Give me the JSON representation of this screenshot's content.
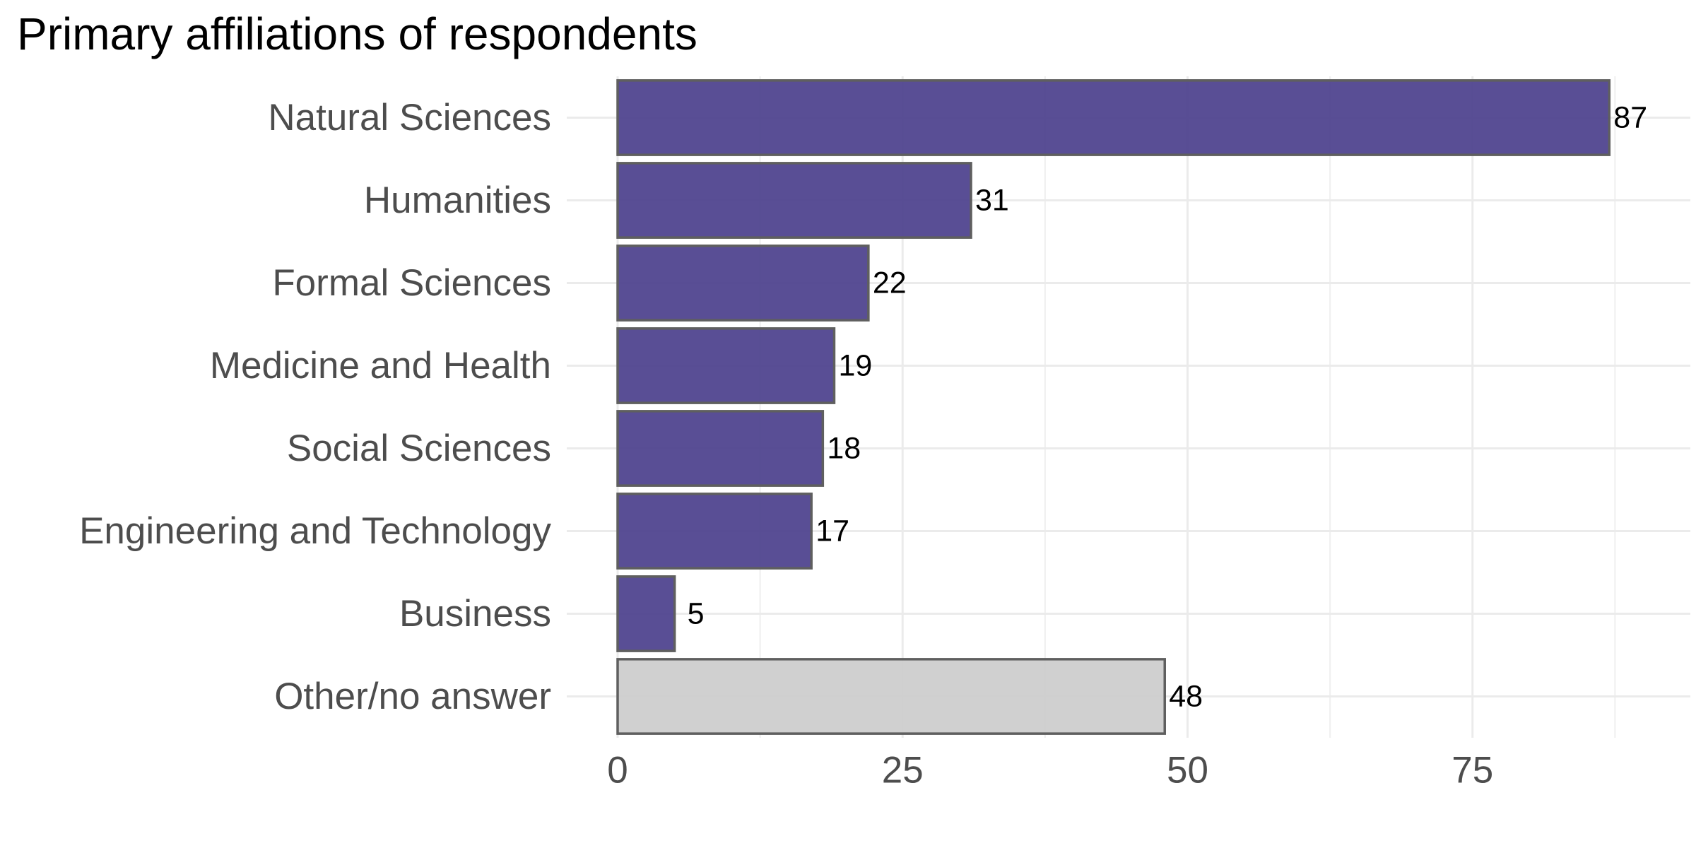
{
  "chart_data": {
    "type": "bar",
    "orientation": "horizontal",
    "title": "Primary affiliations of respondents",
    "xlabel": "",
    "ylabel": "",
    "categories": [
      "Natural Sciences",
      "Humanities",
      "Formal Sciences",
      "Medicine and Health",
      "Social Sciences",
      "Engineering and Technology",
      "Business",
      "Other/no answer"
    ],
    "values": [
      87,
      31,
      22,
      19,
      18,
      17,
      5,
      48
    ],
    "value_labels": [
      "87",
      "31",
      "22",
      "19",
      "18",
      "17",
      "5",
      "48"
    ],
    "bar_colors": [
      "#4b3f8c",
      "#4b3f8c",
      "#4b3f8c",
      "#4b3f8c",
      "#4b3f8c",
      "#4b3f8c",
      "#4b3f8c",
      "#cccccc"
    ],
    "xlim": [
      0,
      91.35
    ],
    "x_ticks": [
      0,
      25,
      50,
      75
    ],
    "x_tick_labels": [
      "0",
      "25",
      "50",
      "75"
    ],
    "grid": true,
    "legend": "none"
  }
}
